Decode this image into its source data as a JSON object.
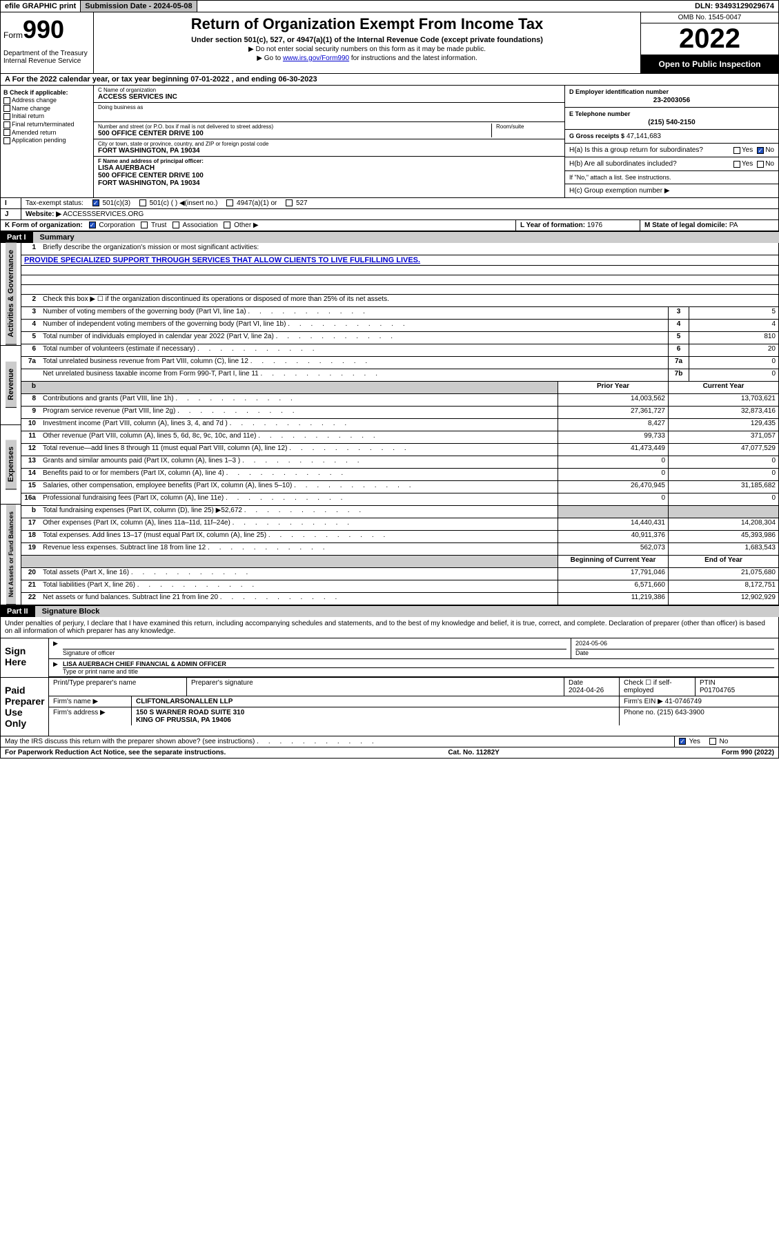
{
  "topbar": {
    "efile": "efile GRAPHIC print",
    "submission": "Submission Date - 2024-05-08",
    "dln": "DLN: 93493129029674"
  },
  "header": {
    "form_word": "Form",
    "form_num": "990",
    "dept": "Department of the Treasury Internal Revenue Service",
    "title": "Return of Organization Exempt From Income Tax",
    "subtitle": "Under section 501(c), 527, or 4947(a)(1) of the Internal Revenue Code (except private foundations)",
    "instr1": "▶ Do not enter social security numbers on this form as it may be made public.",
    "instr2_pre": "▶ Go to ",
    "instr2_link": "www.irs.gov/Form990",
    "instr2_post": " for instructions and the latest information.",
    "omb": "OMB No. 1545-0047",
    "year": "2022",
    "open": "Open to Public Inspection"
  },
  "row_a": "A For the 2022 calendar year, or tax year beginning 07-01-2022    , and ending 06-30-2023",
  "col_b": {
    "hdr": "B Check if applicable:",
    "items": [
      "Address change",
      "Name change",
      "Initial return",
      "Final return/terminated",
      "Amended return",
      "Application pending"
    ]
  },
  "org": {
    "name_lbl": "C Name of organization",
    "name": "ACCESS SERVICES INC",
    "dba_lbl": "Doing business as",
    "addr_lbl": "Number and street (or P.O. box if mail is not delivered to street address)",
    "room_lbl": "Room/suite",
    "addr": "500 OFFICE CENTER DRIVE 100",
    "city_lbl": "City or town, state or province, country, and ZIP or foreign postal code",
    "city": "FORT WASHINGTON, PA  19034",
    "officer_lbl": "F Name and address of principal officer:",
    "officer_name": "LISA AUERBACH",
    "officer_addr1": "500 OFFICE CENTER DRIVE 100",
    "officer_addr2": "FORT WASHINGTON, PA  19034"
  },
  "right": {
    "ein_lbl": "D Employer identification number",
    "ein": "23-2003056",
    "phone_lbl": "E Telephone number",
    "phone": "(215) 540-2150",
    "gross_lbl": "G Gross receipts $",
    "gross": "47,141,683",
    "ha": "H(a)  Is this a group return for subordinates?",
    "hb": "H(b)  Are all subordinates included?",
    "hb_note": "If \"No,\" attach a list. See instructions.",
    "hc": "H(c)  Group exemption number ▶",
    "yes": "Yes",
    "no": "No"
  },
  "row_i": {
    "label": "Tax-exempt status:",
    "opts": [
      "501(c)(3)",
      "501(c) (  ) ◀(insert no.)",
      "4947(a)(1) or",
      "527"
    ]
  },
  "row_j": {
    "label": "Website: ▶",
    "val": "ACCESSSERVICES.ORG"
  },
  "row_k": {
    "label": "K Form of organization:",
    "opts": [
      "Corporation",
      "Trust",
      "Association",
      "Other ▶"
    ]
  },
  "row_l": {
    "label": "L Year of formation:",
    "val": "1976"
  },
  "row_m": {
    "label": "M State of legal domicile:",
    "val": "PA"
  },
  "parts": {
    "p1": "Part I",
    "p1t": "Summary",
    "p2": "Part II",
    "p2t": "Signature Block"
  },
  "tabs": {
    "t1": "Activities & Governance",
    "t2": "Revenue",
    "t3": "Expenses",
    "t4": "Net Assets or Fund Balances"
  },
  "summary": {
    "q1": "Briefly describe the organization's mission or most significant activities:",
    "mission": "PROVIDE SPECIALIZED SUPPORT THROUGH SERVICES THAT ALLOW CLIENTS TO LIVE FULFILLING LIVES.",
    "q2": "Check this box ▶ ☐  if the organization discontinued its operations or disposed of more than 25% of its net assets.",
    "rows_single": [
      {
        "n": "3",
        "t": "Number of voting members of the governing body (Part VI, line 1a)",
        "b": "3",
        "v": "5"
      },
      {
        "n": "4",
        "t": "Number of independent voting members of the governing body (Part VI, line 1b)",
        "b": "4",
        "v": "4"
      },
      {
        "n": "5",
        "t": "Total number of individuals employed in calendar year 2022 (Part V, line 2a)",
        "b": "5",
        "v": "810"
      },
      {
        "n": "6",
        "t": "Total number of volunteers (estimate if necessary)",
        "b": "6",
        "v": "20"
      },
      {
        "n": "7a",
        "t": "Total unrelated business revenue from Part VIII, column (C), line 12",
        "b": "7a",
        "v": "0"
      },
      {
        "n": "",
        "t": "Net unrelated business taxable income from Form 990-T, Part I, line 11",
        "b": "7b",
        "v": "0"
      }
    ],
    "col_hdr_prior": "Prior Year",
    "col_hdr_curr": "Current Year",
    "col_hdr_beg": "Beginning of Current Year",
    "col_hdr_end": "End of Year",
    "revenue": [
      {
        "n": "8",
        "t": "Contributions and grants (Part VIII, line 1h)",
        "p": "14,003,562",
        "c": "13,703,621"
      },
      {
        "n": "9",
        "t": "Program service revenue (Part VIII, line 2g)",
        "p": "27,361,727",
        "c": "32,873,416"
      },
      {
        "n": "10",
        "t": "Investment income (Part VIII, column (A), lines 3, 4, and 7d )",
        "p": "8,427",
        "c": "129,435"
      },
      {
        "n": "11",
        "t": "Other revenue (Part VIII, column (A), lines 5, 6d, 8c, 9c, 10c, and 11e)",
        "p": "99,733",
        "c": "371,057"
      },
      {
        "n": "12",
        "t": "Total revenue—add lines 8 through 11 (must equal Part VIII, column (A), line 12)",
        "p": "41,473,449",
        "c": "47,077,529"
      }
    ],
    "expenses": [
      {
        "n": "13",
        "t": "Grants and similar amounts paid (Part IX, column (A), lines 1–3 )",
        "p": "0",
        "c": "0"
      },
      {
        "n": "14",
        "t": "Benefits paid to or for members (Part IX, column (A), line 4)",
        "p": "0",
        "c": "0"
      },
      {
        "n": "15",
        "t": "Salaries, other compensation, employee benefits (Part IX, column (A), lines 5–10)",
        "p": "26,470,945",
        "c": "31,185,682"
      },
      {
        "n": "16a",
        "t": "Professional fundraising fees (Part IX, column (A), line 11e)",
        "p": "0",
        "c": "0"
      },
      {
        "n": "b",
        "t": "Total fundraising expenses (Part IX, column (D), line 25) ▶52,672",
        "p": "",
        "c": "",
        "gray": true
      },
      {
        "n": "17",
        "t": "Other expenses (Part IX, column (A), lines 11a–11d, 11f–24e)",
        "p": "14,440,431",
        "c": "14,208,304"
      },
      {
        "n": "18",
        "t": "Total expenses. Add lines 13–17 (must equal Part IX, column (A), line 25)",
        "p": "40,911,376",
        "c": "45,393,986"
      },
      {
        "n": "19",
        "t": "Revenue less expenses. Subtract line 18 from line 12",
        "p": "562,073",
        "c": "1,683,543"
      }
    ],
    "net": [
      {
        "n": "20",
        "t": "Total assets (Part X, line 16)",
        "p": "17,791,046",
        "c": "21,075,680"
      },
      {
        "n": "21",
        "t": "Total liabilities (Part X, line 26)",
        "p": "6,571,660",
        "c": "8,172,751"
      },
      {
        "n": "22",
        "t": "Net assets or fund balances. Subtract line 21 from line 20",
        "p": "11,219,386",
        "c": "12,902,929"
      }
    ]
  },
  "sig": {
    "declare": "Under penalties of perjury, I declare that I have examined this return, including accompanying schedules and statements, and to the best of my knowledge and belief, it is true, correct, and complete. Declaration of preparer (other than officer) is based on all information of which preparer has any knowledge.",
    "sign_here": "Sign Here",
    "sig_officer": "Signature of officer",
    "date_lbl": "Date",
    "sig_date": "2024-05-06",
    "name_title": "LISA AUERBACH CHIEF FINANCIAL & ADMIN OFFICER",
    "type_lbl": "Type or print name and title",
    "paid": "Paid Preparer Use Only",
    "prep_name_lbl": "Print/Type preparer's name",
    "prep_sig_lbl": "Preparer's signature",
    "prep_date_lbl": "Date",
    "prep_date": "2024-04-26",
    "check_if": "Check ☐ if self-employed",
    "ptin_lbl": "PTIN",
    "ptin": "P01704765",
    "firm_name_lbl": "Firm's name    ▶",
    "firm_name": "CLIFTONLARSONALLEN LLP",
    "firm_ein_lbl": "Firm's EIN ▶",
    "firm_ein": "41-0746749",
    "firm_addr_lbl": "Firm's address ▶",
    "firm_addr1": "150 S WARNER ROAD SUITE 310",
    "firm_addr2": "KING OF PRUSSIA, PA  19406",
    "firm_phone_lbl": "Phone no.",
    "firm_phone": "(215) 643-3900",
    "discuss": "May the IRS discuss this return with the preparer shown above? (see instructions)"
  },
  "footer": {
    "left": "For Paperwork Reduction Act Notice, see the separate instructions.",
    "mid": "Cat. No. 11282Y",
    "right": "Form 990 (2022)"
  }
}
